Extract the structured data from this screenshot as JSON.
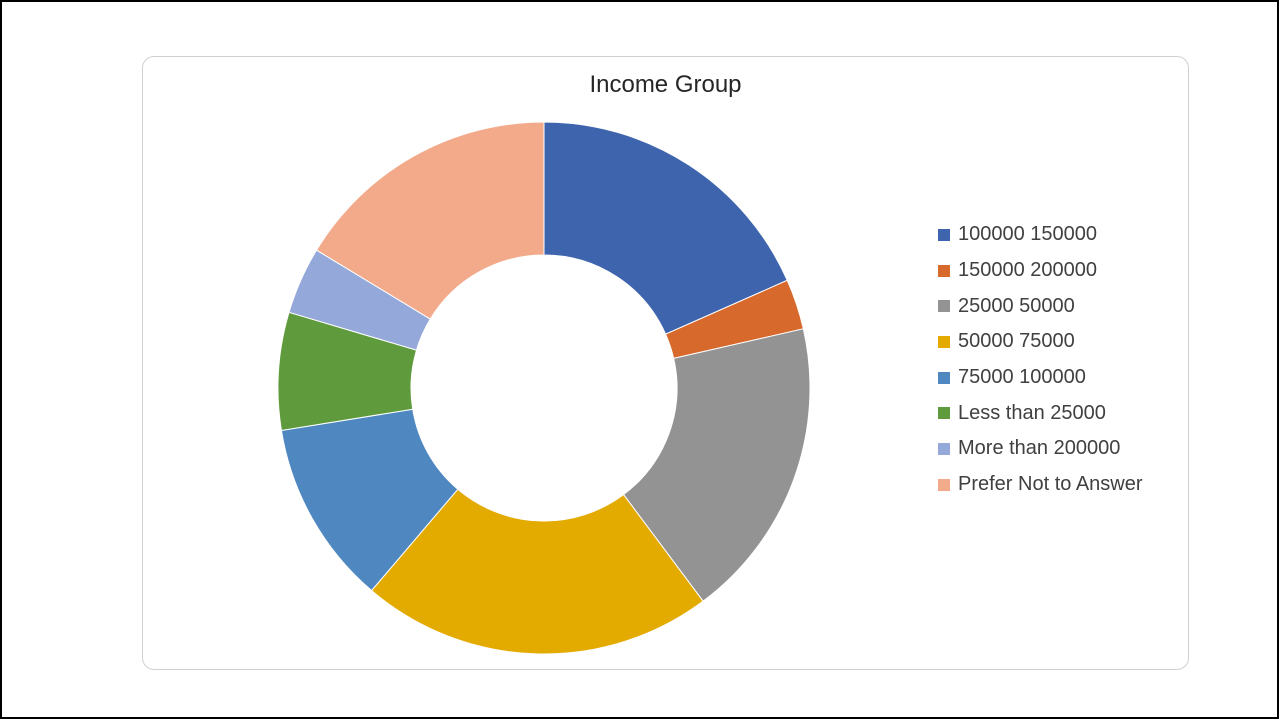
{
  "chart_data": {
    "type": "pie",
    "variant": "donut",
    "title": "Income Group",
    "legend_position": "right",
    "slices": [
      {
        "label": "100000 150000",
        "value": 18,
        "color": "#3d64ad"
      },
      {
        "label": "150000 200000",
        "value": 3,
        "color": "#d7692c"
      },
      {
        "label": "25000 50000",
        "value": 18,
        "color": "#939393"
      },
      {
        "label": "50000 75000",
        "value": 21,
        "color": "#e3aa00"
      },
      {
        "label": "75000 100000",
        "value": 11,
        "color": "#4f88c0"
      },
      {
        "label": "Less than 25000",
        "value": 7,
        "color": "#5f9b3c"
      },
      {
        "label": "More than 200000",
        "value": 4,
        "color": "#94a9da"
      },
      {
        "label": "Prefer Not to Answer",
        "value": 16,
        "color": "#f2aa8b"
      }
    ]
  }
}
